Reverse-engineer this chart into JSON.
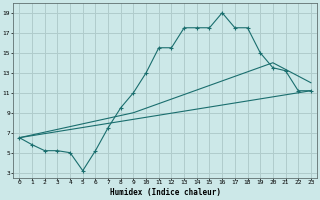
{
  "xlabel": "Humidex (Indice chaleur)",
  "bg_color": "#cce8e8",
  "grid_color": "#b0cccc",
  "line_color": "#1a6e6e",
  "xlim": [
    -0.5,
    23.5
  ],
  "ylim": [
    2.5,
    20
  ],
  "xticks": [
    0,
    1,
    2,
    3,
    4,
    5,
    6,
    7,
    8,
    9,
    10,
    11,
    12,
    13,
    14,
    15,
    16,
    17,
    18,
    19,
    20,
    21,
    22,
    23
  ],
  "yticks": [
    3,
    5,
    7,
    9,
    11,
    13,
    15,
    17,
    19
  ],
  "line1_x": [
    0,
    1,
    2,
    3,
    4,
    5,
    6,
    7,
    8,
    9,
    10,
    11,
    12,
    13,
    14,
    15,
    16,
    17,
    18,
    19,
    20,
    21,
    22,
    23
  ],
  "line1_y": [
    6.5,
    5.8,
    5.2,
    5.2,
    5.0,
    3.2,
    5.2,
    7.5,
    9.5,
    11.0,
    13.0,
    15.5,
    15.5,
    17.5,
    17.5,
    17.5,
    19.0,
    17.5,
    17.5,
    15.0,
    13.5,
    13.2,
    11.2,
    11.2
  ],
  "line2_x": [
    0,
    23
  ],
  "line2_y": [
    6.5,
    11.2
  ],
  "line3_x": [
    0,
    9,
    20,
    23
  ],
  "line3_y": [
    6.5,
    9.0,
    14.0,
    12.0
  ]
}
